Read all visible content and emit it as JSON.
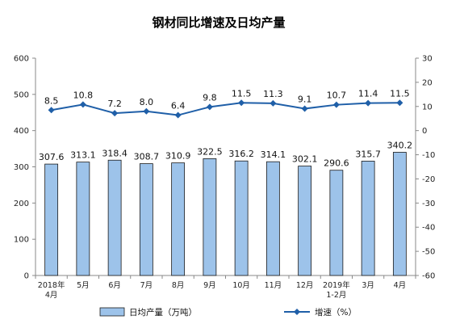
{
  "chart_data": {
    "type": "bar+line",
    "title": "钢材同比增速及日均产量",
    "categories": [
      [
        "2018年",
        "4月"
      ],
      [
        "5月"
      ],
      [
        "6月"
      ],
      [
        "7月"
      ],
      [
        "8月"
      ],
      [
        "9月"
      ],
      [
        "10月"
      ],
      [
        "11月"
      ],
      [
        "12月"
      ],
      [
        "2019年",
        "1-2月"
      ],
      [
        "3月"
      ],
      [
        "4月"
      ]
    ],
    "series": [
      {
        "name": "日均产量（万吨）",
        "type": "bar",
        "axis": "left",
        "values": [
          307.6,
          313.1,
          318.4,
          308.7,
          310.9,
          322.5,
          316.2,
          314.1,
          302.1,
          290.6,
          315.7,
          340.2
        ],
        "labels": [
          "307.6",
          "313.1",
          "318.4",
          "308.7",
          "310.9",
          "322.5",
          "316.2",
          "314.1",
          "302.1",
          "290.6",
          "315.7",
          "340.2"
        ]
      },
      {
        "name": "增速（%）",
        "type": "line",
        "axis": "right",
        "values": [
          8.5,
          10.8,
          7.2,
          8.0,
          6.4,
          9.8,
          11.5,
          11.3,
          9.1,
          10.7,
          11.4,
          11.5
        ],
        "labels": [
          "8.5",
          "10.8",
          "7.2",
          "8.0",
          "6.4",
          "9.8",
          "11.5",
          "11.3",
          "9.1",
          "10.7",
          "11.4",
          "11.5"
        ]
      }
    ],
    "y_left": {
      "min": 0,
      "max": 600,
      "step": 100
    },
    "y_right": {
      "min": -60,
      "max": 30,
      "step": 10
    },
    "grid": false,
    "legend_position": "bottom",
    "colors": {
      "bar_fill": "#9dc3ea",
      "bar_stroke": "#1a1a1a",
      "line": "#1f5fa8",
      "axis": "#888888"
    }
  }
}
